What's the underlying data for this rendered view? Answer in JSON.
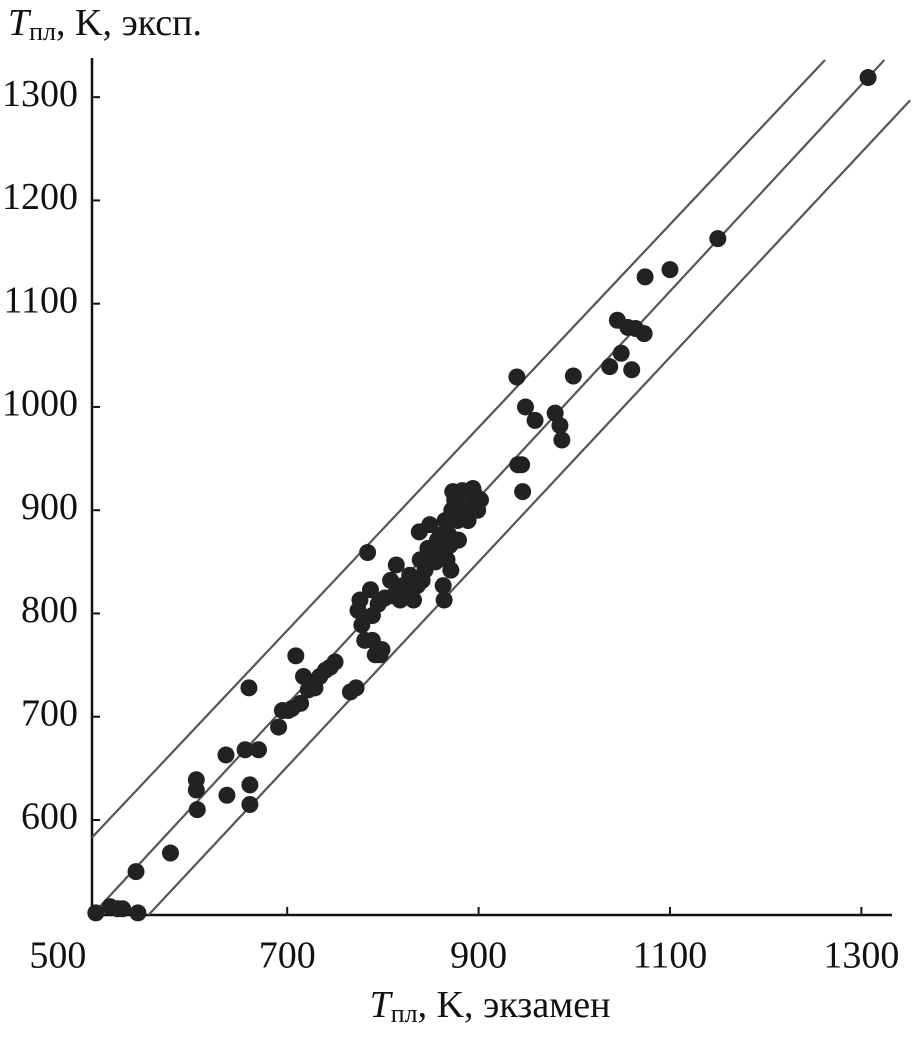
{
  "chart_data": {
    "type": "scatter",
    "x_label": {
      "main": "T",
      "sub": "пл",
      "rest": ", K, экзамен"
    },
    "y_label": {
      "main": "T",
      "sub": "пл",
      "rest": ", K, эксп."
    },
    "xlim": [
      496,
      1332
    ],
    "ylim": [
      508,
      1336
    ],
    "xticks": [
      500,
      700,
      900,
      1100,
      1300
    ],
    "yticks": [
      600,
      700,
      800,
      900,
      1000,
      1100,
      1200,
      1300
    ],
    "color": "#222222",
    "line_color": "#555555",
    "reference_lines": [
      {
        "x": [
          496,
          1262
        ],
        "y": [
          583,
          1336
        ]
      },
      {
        "x": [
          496,
          1324
        ],
        "y": [
          508,
          1336
        ]
      },
      {
        "x": [
          555,
          1351
        ],
        "y": [
          508,
          1297
        ]
      }
    ],
    "x": [
      500,
      515,
      523,
      528,
      544,
      542,
      578,
      605,
      605,
      606,
      636,
      637,
      656,
      660,
      661,
      661,
      670,
      691,
      695,
      701,
      705,
      709,
      714,
      717,
      722,
      724,
      729,
      734,
      740,
      745,
      750,
      766,
      772,
      774,
      776,
      778,
      781,
      784,
      787,
      789,
      789,
      792,
      795,
      797,
      799,
      802,
      808,
      811,
      814,
      818,
      821,
      823,
      828,
      832,
      836,
      838,
      839,
      841,
      844,
      847,
      849,
      851,
      855,
      857,
      860,
      861,
      863,
      864,
      865,
      867,
      869,
      870,
      871,
      872,
      873,
      875,
      878,
      879,
      881,
      883,
      886,
      889,
      891,
      892,
      894,
      896,
      899,
      902,
      940,
      941,
      945,
      946,
      949,
      959,
      980,
      985,
      987,
      999,
      1037,
      1045,
      1049,
      1056,
      1060,
      1064,
      1074,
      1073,
      1100,
      1150,
      1307
    ],
    "y": [
      510,
      516,
      514,
      514,
      510,
      550,
      568,
      639,
      629,
      610,
      663,
      624,
      668,
      728,
      634,
      615,
      668,
      690,
      706,
      706,
      708,
      759,
      713,
      739,
      726,
      733,
      728,
      739,
      745,
      748,
      753,
      724,
      728,
      803,
      813,
      789,
      774,
      859,
      823,
      798,
      774,
      760,
      809,
      760,
      765,
      815,
      832,
      817,
      847,
      813,
      827,
      818,
      837,
      813,
      827,
      879,
      852,
      832,
      842,
      863,
      886,
      859,
      850,
      871,
      876,
      861,
      827,
      813,
      890,
      852,
      876,
      866,
      842,
      900,
      918,
      910,
      890,
      871,
      904,
      919,
      898,
      890,
      919,
      905,
      921,
      915,
      900,
      910,
      1029,
      944,
      944,
      918,
      1000,
      987,
      994,
      982,
      968,
      1030,
      1039,
      1084,
      1052,
      1077,
      1036,
      1076,
      1126,
      1071,
      1133,
      1163,
      1319
    ]
  }
}
